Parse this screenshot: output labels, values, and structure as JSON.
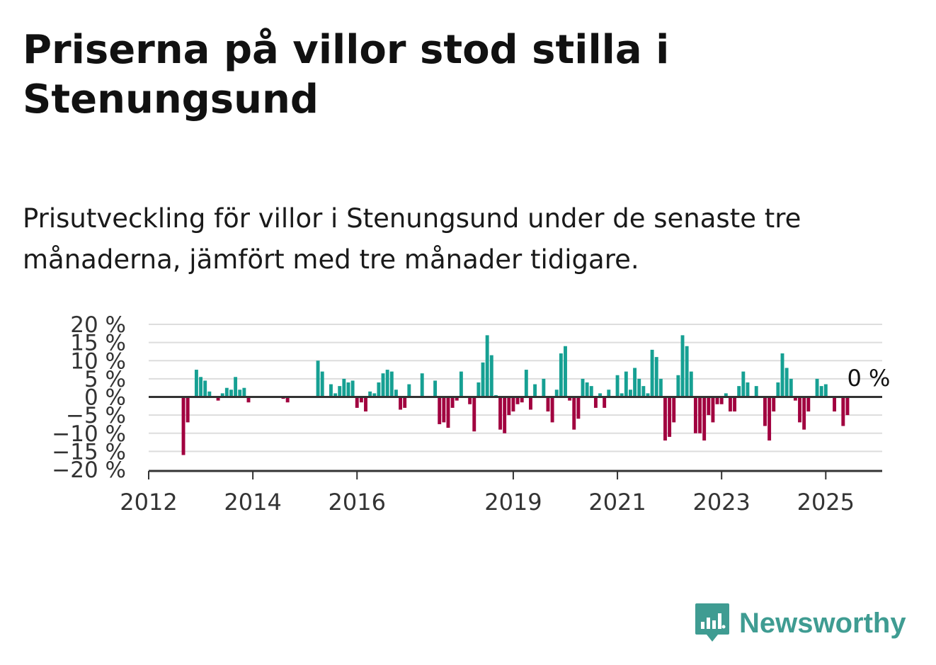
{
  "title": "Priserna på villor stod stilla i Stenungsund",
  "subtitle": "Prisutveckling för villor i Stenungsund under de senaste tre månaderna, jämfört med tre månader tidigare.",
  "brand": {
    "name": "Newsworthy",
    "icon": "newsworthy-logo-icon"
  },
  "colors": {
    "positive": "#16a093",
    "negative": "#a1003f",
    "grid": "#dddddd",
    "axis": "#333333",
    "brand": "#3f9c92"
  },
  "chart_data": {
    "type": "bar",
    "x_start": "2012-01",
    "x_end": "2026-02",
    "x_ticks": [
      "2012",
      "2014",
      "2016",
      "2019",
      "2021",
      "2023",
      "2025"
    ],
    "y_ticks": [
      "20 %",
      "15 %",
      "10 %",
      "5 %",
      "0 %",
      "−5 %",
      "−10 %",
      "−15 %",
      "−20 %"
    ],
    "ylim": [
      -20,
      20
    ],
    "annotation": "0 %",
    "months": [
      "2012-09",
      "2012-10",
      "2012-11",
      "2012-12",
      "2013-01",
      "2013-02",
      "2013-03",
      "2013-04",
      "2013-05",
      "2013-06",
      "2013-07",
      "2013-08",
      "2013-09",
      "2013-10",
      "2013-11",
      "2013-12",
      "2014-01",
      "2014-02",
      "2014-03",
      "2014-04",
      "2014-05",
      "2014-06",
      "2014-07",
      "2014-08",
      "2014-09",
      "2014-10",
      "2014-11",
      "2014-12",
      "2015-01",
      "2015-02",
      "2015-03",
      "2015-04",
      "2015-05",
      "2015-06",
      "2015-07",
      "2015-08",
      "2015-09",
      "2015-10",
      "2015-11",
      "2015-12",
      "2016-01",
      "2016-02",
      "2016-03",
      "2016-04",
      "2016-05",
      "2016-06",
      "2016-07",
      "2016-08",
      "2016-09",
      "2016-10",
      "2016-11",
      "2016-12",
      "2017-01",
      "2017-02",
      "2017-03",
      "2017-04",
      "2017-05",
      "2017-06",
      "2017-07",
      "2017-08",
      "2017-09",
      "2017-10",
      "2017-11",
      "2017-12",
      "2018-01",
      "2018-02",
      "2018-03",
      "2018-04",
      "2018-05",
      "2018-06",
      "2018-07",
      "2018-08",
      "2018-09",
      "2018-10",
      "2018-11",
      "2018-12",
      "2019-01",
      "2019-02",
      "2019-03",
      "2019-04",
      "2019-05",
      "2019-06",
      "2019-07",
      "2019-08",
      "2019-09",
      "2019-10",
      "2019-11",
      "2019-12",
      "2020-01",
      "2020-02",
      "2020-03",
      "2020-04",
      "2020-05",
      "2020-06",
      "2020-07",
      "2020-08",
      "2020-09",
      "2020-10",
      "2020-11",
      "2020-12",
      "2021-01",
      "2021-02",
      "2021-03",
      "2021-04",
      "2021-05",
      "2021-06",
      "2021-07",
      "2021-08",
      "2021-09",
      "2021-10",
      "2021-11",
      "2021-12",
      "2022-01",
      "2022-02",
      "2022-03",
      "2022-04",
      "2022-05",
      "2022-06",
      "2022-07",
      "2022-08",
      "2022-09",
      "2022-10",
      "2022-11",
      "2022-12",
      "2023-01",
      "2023-02",
      "2023-03",
      "2023-04",
      "2023-05",
      "2023-06",
      "2023-07",
      "2023-08",
      "2023-09",
      "2023-10",
      "2023-11",
      "2023-12",
      "2024-01",
      "2024-02",
      "2024-03",
      "2024-04",
      "2024-05",
      "2024-06",
      "2024-07",
      "2024-08",
      "2024-09",
      "2024-10",
      "2024-11",
      "2024-12",
      "2025-01",
      "2025-02",
      "2025-03",
      "2025-04",
      "2025-05",
      "2025-06"
    ],
    "values": [
      -16,
      -7,
      0,
      7.5,
      5.5,
      4.5,
      1.5,
      0,
      -1,
      1,
      2.5,
      2,
      5.5,
      2,
      2.5,
      -1.5,
      0,
      0,
      0,
      0,
      0,
      0,
      0,
      -0.5,
      -1.5,
      0,
      0,
      0,
      0,
      0,
      0,
      10,
      7,
      0,
      3.5,
      1,
      3,
      5,
      4,
      4.5,
      -3,
      -1.5,
      -4,
      1.5,
      1,
      4,
      6.5,
      7.5,
      7,
      2,
      -3.5,
      -3,
      3.5,
      0,
      0,
      6.5,
      0,
      0,
      4.5,
      -7.5,
      -7,
      -8.5,
      -3,
      -1,
      7,
      0,
      -2,
      -9.5,
      4,
      9.5,
      17,
      11.5,
      0.5,
      -9,
      -10,
      -5,
      -4,
      -2,
      -1.5,
      7.5,
      -3.5,
      3.5,
      0,
      5,
      -4,
      -7,
      2,
      12,
      14,
      -1,
      -9,
      -6,
      5,
      4,
      3,
      -3,
      1,
      -3,
      2,
      0,
      6,
      1,
      7,
      2,
      8,
      5,
      3,
      1,
      13,
      11,
      5,
      -12,
      -11,
      -7,
      6,
      17,
      14,
      7,
      -10,
      -10,
      -12,
      -5,
      -7,
      -2,
      -2,
      1,
      -4,
      -4,
      3,
      7,
      4,
      0,
      3,
      0,
      -8,
      -12,
      -4,
      4,
      12,
      8,
      5,
      -1,
      -7,
      -9,
      -4,
      0,
      5,
      3,
      3.5,
      0,
      -4,
      0,
      -8,
      -5
    ]
  }
}
